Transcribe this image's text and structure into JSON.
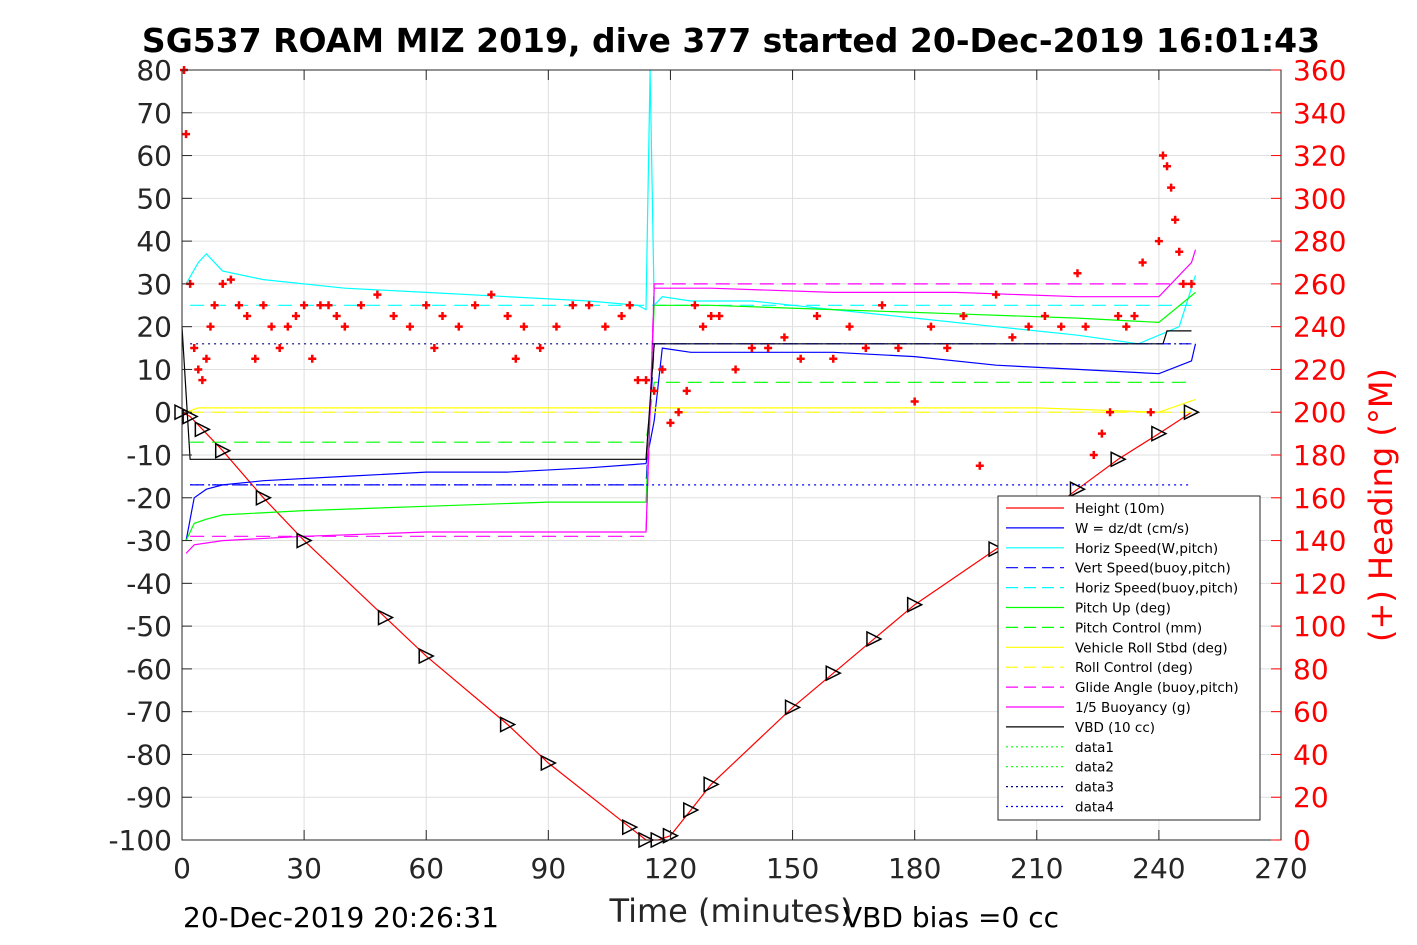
{
  "chart_data": {
    "type": "line",
    "title": "SG537 ROAM MIZ 2019, dive 377 started 20-Dec-2019 16:01:43",
    "xlabel": "Time (minutes)",
    "ylabel": "",
    "y2label": "(+) Heading (°M)",
    "xlim": [
      0,
      270
    ],
    "ylim": [
      -100,
      80
    ],
    "y2lim": [
      0,
      360
    ],
    "xticks": [
      "0",
      "30",
      "60",
      "90",
      "120",
      "150",
      "180",
      "210",
      "240",
      "270"
    ],
    "yticks": [
      "80",
      "70",
      "60",
      "50",
      "40",
      "30",
      "20",
      "10",
      "0",
      "-10",
      "-20",
      "-30",
      "-40",
      "-50",
      "-60",
      "-70",
      "-80",
      "-90",
      "-100"
    ],
    "y2ticks": [
      "360",
      "340",
      "320",
      "300",
      "280",
      "260",
      "240",
      "220",
      "200",
      "180",
      "160",
      "140",
      "120",
      "100",
      "80",
      "60",
      "40",
      "20",
      "0"
    ],
    "grid": true,
    "legend_position": "bottom-right",
    "colors": {
      "height": "#ff0000",
      "w": "#0000ff",
      "horiz_speed": "#00ffff",
      "pitch": "#00ff00",
      "roll": "#ffff00",
      "glide": "#ff00ff",
      "buoyancy": "#ff00ff",
      "vbd": "#000000",
      "heading": "#ff0000"
    },
    "legend": [
      {
        "label": "Height (10m)",
        "color": "#ff0000",
        "dash": "solid"
      },
      {
        "label": "W = dz/dt (cm/s)",
        "color": "#0000ff",
        "dash": "solid"
      },
      {
        "label": "Horiz Speed(W,pitch)",
        "color": "#00ffff",
        "dash": "solid"
      },
      {
        "label": "Vert Speed(buoy,pitch)",
        "color": "#0000ff",
        "dash": "dashed"
      },
      {
        "label": "Horiz Speed(buoy,pitch)",
        "color": "#00ffff",
        "dash": "dashed"
      },
      {
        "label": "Pitch Up (deg)",
        "color": "#00ff00",
        "dash": "solid"
      },
      {
        "label": "Pitch Control (mm)",
        "color": "#00ff00",
        "dash": "dashed"
      },
      {
        "label": "Vehicle Roll Stbd (deg)",
        "color": "#ffff00",
        "dash": "solid"
      },
      {
        "label": "Roll Control (deg)",
        "color": "#ffff00",
        "dash": "dashed"
      },
      {
        "label": "Glide Angle (buoy,pitch)",
        "color": "#ff00ff",
        "dash": "dashed"
      },
      {
        "label": "1/5 Buoyancy (g)",
        "color": "#ff00ff",
        "dash": "solid"
      },
      {
        "label": "VBD (10 cc)",
        "color": "#000000",
        "dash": "solid"
      },
      {
        "label": "data1",
        "color": "#00ff00",
        "dash": "dotted"
      },
      {
        "label": "data2",
        "color": "#00ff00",
        "dash": "dotted"
      },
      {
        "label": "data3",
        "color": "#000080",
        "dash": "dotted"
      },
      {
        "label": "data4",
        "color": "#0000ff",
        "dash": "dotted"
      }
    ],
    "series": [
      {
        "key": "height",
        "x": [
          0,
          2,
          5,
          10,
          20,
          30,
          50,
          60,
          80,
          90,
          110,
          114,
          117,
          120,
          125,
          130,
          150,
          160,
          170,
          180,
          200,
          220,
          230,
          240,
          248
        ],
        "y": [
          0,
          -1,
          -4,
          -9,
          -20,
          -30,
          -48,
          -57,
          -73,
          -82,
          -97,
          -100,
          -100,
          -99,
          -93,
          -87,
          -69,
          -61,
          -53,
          -45,
          -32,
          -18,
          -11,
          -5,
          0
        ]
      },
      {
        "key": "w",
        "x": [
          1,
          3,
          6,
          10,
          20,
          40,
          60,
          80,
          100,
          114,
          116,
          118,
          125,
          140,
          160,
          180,
          200,
          220,
          240,
          248,
          249
        ],
        "y": [
          -30,
          -20,
          -18,
          -17,
          -16,
          -15,
          -14,
          -14,
          -13,
          -12,
          -2,
          15,
          14,
          14,
          14,
          13,
          11,
          10,
          9,
          12,
          16
        ]
      },
      {
        "key": "horiz_speed",
        "x": [
          1,
          4,
          6,
          10,
          20,
          40,
          60,
          80,
          100,
          112,
          114,
          115,
          116,
          118,
          125,
          140,
          160,
          180,
          200,
          220,
          235,
          245,
          249
        ],
        "y": [
          30,
          35,
          37,
          33,
          31,
          29,
          28,
          27,
          26,
          25,
          24,
          80,
          25,
          27,
          26,
          26,
          24,
          22,
          20,
          18,
          16,
          20,
          32
        ]
      },
      {
        "key": "vert_speed_buoy",
        "x": [
          2,
          114,
          116,
          248
        ],
        "y": [
          -17,
          -17,
          16,
          16
        ]
      },
      {
        "key": "horiz_speed_buoy",
        "x": [
          2,
          114,
          116,
          248
        ],
        "y": [
          25,
          25,
          25,
          25
        ]
      },
      {
        "key": "pitch",
        "x": [
          1,
          3,
          6,
          10,
          30,
          60,
          90,
          114,
          115,
          116,
          130,
          160,
          190,
          220,
          240,
          249
        ],
        "y": [
          -30,
          -26,
          -25,
          -24,
          -23,
          -22,
          -21,
          -21,
          0,
          25,
          25,
          24,
          23,
          22,
          21,
          28
        ]
      },
      {
        "key": "pitch_control",
        "x": [
          2,
          114,
          116,
          248
        ],
        "y": [
          -7,
          -7,
          7,
          7
        ]
      },
      {
        "key": "roll",
        "x": [
          1,
          4,
          8,
          30,
          60,
          90,
          114,
          120,
          150,
          180,
          210,
          240,
          249
        ],
        "y": [
          0,
          1,
          1,
          1,
          1,
          1,
          1,
          1,
          1,
          1,
          1,
          0,
          3
        ]
      },
      {
        "key": "roll_control",
        "x": [
          2,
          248
        ],
        "y": [
          0,
          0
        ]
      },
      {
        "key": "glide",
        "x": [
          2,
          114,
          116,
          248
        ],
        "y": [
          -29,
          -29,
          30,
          30
        ]
      },
      {
        "key": "buoyancy",
        "x": [
          1,
          3,
          10,
          30,
          60,
          90,
          114,
          115,
          116,
          130,
          160,
          190,
          220,
          240,
          248,
          249
        ],
        "y": [
          -33,
          -31,
          -30,
          -29,
          -28,
          -28,
          -28,
          0,
          29,
          29,
          28,
          28,
          27,
          27,
          35,
          38
        ]
      },
      {
        "key": "vbd",
        "x": [
          0,
          2,
          114,
          116,
          241,
          242,
          248
        ],
        "y": [
          20,
          -11,
          -11,
          16,
          16,
          19,
          19
        ]
      },
      {
        "key": "data3",
        "x": [
          2,
          248
        ],
        "y": [
          16,
          16
        ]
      },
      {
        "key": "data4",
        "x": [
          2,
          248
        ],
        "y": [
          -17,
          -17
        ]
      }
    ],
    "heading": {
      "x": [
        0.5,
        1,
        2,
        3,
        4,
        5,
        6,
        7,
        8,
        10,
        12,
        14,
        16,
        18,
        20,
        22,
        24,
        26,
        28,
        30,
        32,
        34,
        36,
        38,
        40,
        44,
        48,
        52,
        56,
        60,
        62,
        64,
        68,
        72,
        76,
        80,
        82,
        84,
        88,
        92,
        96,
        100,
        104,
        108,
        110,
        112,
        114,
        116,
        118,
        120,
        122,
        124,
        126,
        128,
        130,
        132,
        136,
        140,
        144,
        148,
        152,
        156,
        160,
        164,
        168,
        172,
        176,
        180,
        184,
        188,
        192,
        196,
        200,
        204,
        208,
        212,
        216,
        220,
        222,
        224,
        226,
        228,
        230,
        232,
        234,
        236,
        238,
        240,
        241,
        242,
        243,
        244,
        245,
        246,
        248
      ],
      "y": [
        360,
        330,
        260,
        230,
        220,
        215,
        225,
        240,
        250,
        260,
        262,
        250,
        245,
        225,
        250,
        240,
        230,
        240,
        245,
        250,
        225,
        250,
        250,
        245,
        240,
        250,
        255,
        245,
        240,
        250,
        230,
        245,
        240,
        250,
        255,
        245,
        225,
        240,
        230,
        240,
        250,
        250,
        240,
        245,
        250,
        215,
        215,
        210,
        220,
        195,
        200,
        210,
        250,
        240,
        245,
        245,
        220,
        230,
        230,
        235,
        225,
        245,
        225,
        240,
        230,
        250,
        230,
        205,
        240,
        230,
        245,
        175,
        255,
        235,
        240,
        245,
        240,
        265,
        240,
        180,
        190,
        200,
        245,
        240,
        245,
        270,
        200,
        280,
        320,
        315,
        305,
        290,
        275,
        260,
        260
      ]
    }
  },
  "footer": {
    "timestamp": "20-Dec-2019 20:26:31",
    "vbd_bias": "VBD bias =0 cc"
  }
}
